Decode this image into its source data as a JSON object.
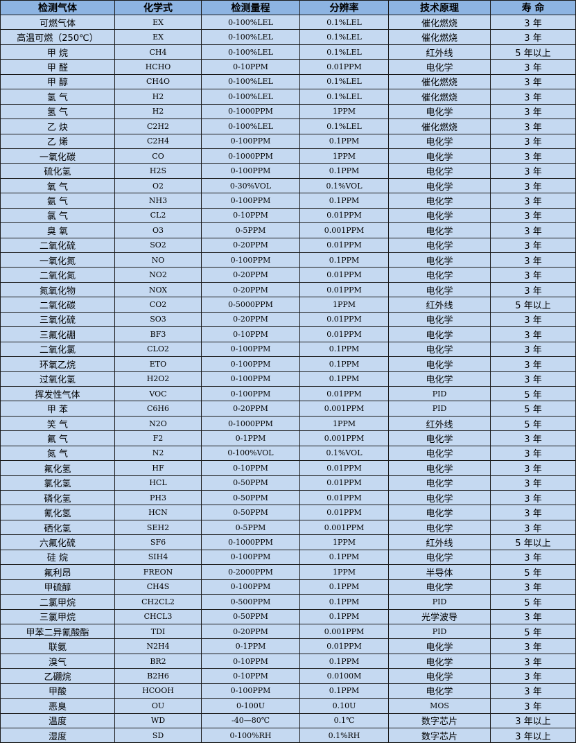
{
  "colors": {
    "header_bg": "#8db4e2",
    "row_bg": "#c5d9f1"
  },
  "headers": [
    "检测气体",
    "化学式",
    "检测量程",
    "分辨率",
    "技术原理",
    "寿 命"
  ],
  "rows": [
    [
      "可燃气体",
      "EX",
      "0-100%LEL",
      "0.1%LEL",
      "催化燃烧",
      "3 年"
    ],
    [
      "高温可燃（250℃）",
      "EX",
      "0-100%LEL",
      "0.1%LEL",
      "催化燃烧",
      "3 年"
    ],
    [
      "甲 烷",
      "CH4",
      "0-100%LEL",
      "0.1%LEL",
      "红外线",
      "5 年以上"
    ],
    [
      "甲 醛",
      "HCHO",
      "0-10PPM",
      "0.01PPM",
      "电化学",
      "3 年"
    ],
    [
      "甲 醇",
      "CH4O",
      "0-100%LEL",
      "0.1%LEL",
      "催化燃烧",
      "3 年"
    ],
    [
      "氢 气",
      "H2",
      "0-100%LEL",
      "0.1%LEL",
      "催化燃烧",
      "3 年"
    ],
    [
      "氢 气",
      "H2",
      "0-1000PPM",
      "1PPM",
      "电化学",
      "3 年"
    ],
    [
      "乙 炔",
      "C2H2",
      "0-100%LEL",
      "0.1%LEL",
      "催化燃烧",
      "3 年"
    ],
    [
      "乙 烯",
      "C2H4",
      "0-100PPM",
      "0.1PPM",
      "电化学",
      "3 年"
    ],
    [
      "一氧化碳",
      "CO",
      "0-1000PPM",
      "1PPM",
      "电化学",
      "3 年"
    ],
    [
      "硫化氢",
      "H2S",
      "0-100PPM",
      "0.1PPM",
      "电化学",
      "3 年"
    ],
    [
      "氧 气",
      "O2",
      "0-30%VOL",
      "0.1%VOL",
      "电化学",
      "3 年"
    ],
    [
      "氨 气",
      "NH3",
      "0-100PPM",
      "0.1PPM",
      "电化学",
      "3 年"
    ],
    [
      "氯 气",
      "CL2",
      "0-10PPM",
      "0.01PPM",
      "电化学",
      "3 年"
    ],
    [
      "臭 氧",
      "O3",
      "0-5PPM",
      "0.001PPM",
      "电化学",
      "3 年"
    ],
    [
      "二氧化硫",
      "SO2",
      "0-20PPM",
      "0.01PPM",
      "电化学",
      "3 年"
    ],
    [
      "一氧化氮",
      "NO",
      "0-100PPM",
      "0.1PPM",
      "电化学",
      "3 年"
    ],
    [
      "二氧化氮",
      "NO2",
      "0-20PPM",
      "0.01PPM",
      "电化学",
      "3 年"
    ],
    [
      "氮氧化物",
      "NOX",
      "0-20PPM",
      "0.01PPM",
      "电化学",
      "3 年"
    ],
    [
      "二氧化碳",
      "CO2",
      "0-5000PPM",
      "1PPM",
      "红外线",
      "5 年以上"
    ],
    [
      "三氧化硫",
      "SO3",
      "0-20PPM",
      "0.01PPM",
      "电化学",
      "3 年"
    ],
    [
      "三氟化硼",
      "BF3",
      "0-10PPM",
      "0.01PPM",
      "电化学",
      "3 年"
    ],
    [
      "二氧化氯",
      "CLO2",
      "0-100PPM",
      "0.1PPM",
      "电化学",
      "3 年"
    ],
    [
      "环氧乙烷",
      "ETO",
      "0-100PPM",
      "0.1PPM",
      "电化学",
      "3 年"
    ],
    [
      "过氧化氢",
      "H2O2",
      "0-100PPM",
      "0.1PPM",
      "电化学",
      "3 年"
    ],
    [
      "挥发性气体",
      "VOC",
      "0-100PPM",
      "0.01PPM",
      "PID",
      "5 年"
    ],
    [
      "甲 苯",
      "C6H6",
      "0-20PPM",
      "0.001PPM",
      "PID",
      "5 年"
    ],
    [
      "笑 气",
      "N2O",
      "0-1000PPM",
      "1PPM",
      "红外线",
      "5 年"
    ],
    [
      "氟 气",
      "F2",
      "0-1PPM",
      "0.001PPM",
      "电化学",
      "3 年"
    ],
    [
      "氮 气",
      "N2",
      "0-100%VOL",
      "0.1%VOL",
      "电化学",
      "3 年"
    ],
    [
      "氟化氢",
      "HF",
      "0-10PPM",
      "0.01PPM",
      "电化学",
      "3 年"
    ],
    [
      "氯化氢",
      "HCL",
      "0-50PPM",
      "0.01PPM",
      "电化学",
      "3 年"
    ],
    [
      "磷化氢",
      "PH3",
      "0-50PPM",
      "0.01PPM",
      "电化学",
      "3 年"
    ],
    [
      "氰化氢",
      "HCN",
      "0-50PPM",
      "0.01PPM",
      "电化学",
      "3 年"
    ],
    [
      "硒化氢",
      "SEH2",
      "0-5PPM",
      "0.001PPM",
      "电化学",
      "3 年"
    ],
    [
      "六氟化硫",
      "SF6",
      "0-1000PPM",
      "1PPM",
      "红外线",
      "5 年以上"
    ],
    [
      "硅 烷",
      "SIH4",
      "0-100PPM",
      "0.1PPM",
      "电化学",
      "3 年"
    ],
    [
      "氟利昂",
      "FREON",
      "0-2000PPM",
      "1PPM",
      "半导体",
      "5 年"
    ],
    [
      "甲硫醇",
      "CH4S",
      "0-100PPM",
      "0.1PPM",
      "电化学",
      "3 年"
    ],
    [
      "二氯甲烷",
      "CH2CL2",
      "0-500PPM",
      "0.1PPM",
      "PID",
      "5 年"
    ],
    [
      "三氯甲烷",
      "CHCL3",
      "0-50PPM",
      "0.1PPM",
      "光学波导",
      "3 年"
    ],
    [
      "甲苯二异氰酸酯",
      "TDI",
      "0-20PPM",
      "0.001PPM",
      "PID",
      "5 年"
    ],
    [
      "联氨",
      "N2H4",
      "0-1PPM",
      "0.01PPM",
      "电化学",
      "3 年"
    ],
    [
      "溴气",
      "BR2",
      "0-10PPM",
      "0.1PPM",
      "电化学",
      "3 年"
    ],
    [
      "乙硼烷",
      "B2H6",
      "0-10PPM",
      "0.0100M",
      "电化学",
      "3 年"
    ],
    [
      "甲酸",
      "HCOOH",
      "0-100PPM",
      "0.1PPM",
      "电化学",
      "3 年"
    ],
    [
      "恶臭",
      "OU",
      "0-100U",
      "0.10U",
      "MOS",
      "3 年"
    ],
    [
      "温度",
      "WD",
      "-40—80℃",
      "0.1℃",
      "数字芯片",
      "3 年以上"
    ],
    [
      "湿度",
      "SD",
      "0-100%RH",
      "0.1%RH",
      "数字芯片",
      "3 年以上"
    ]
  ]
}
